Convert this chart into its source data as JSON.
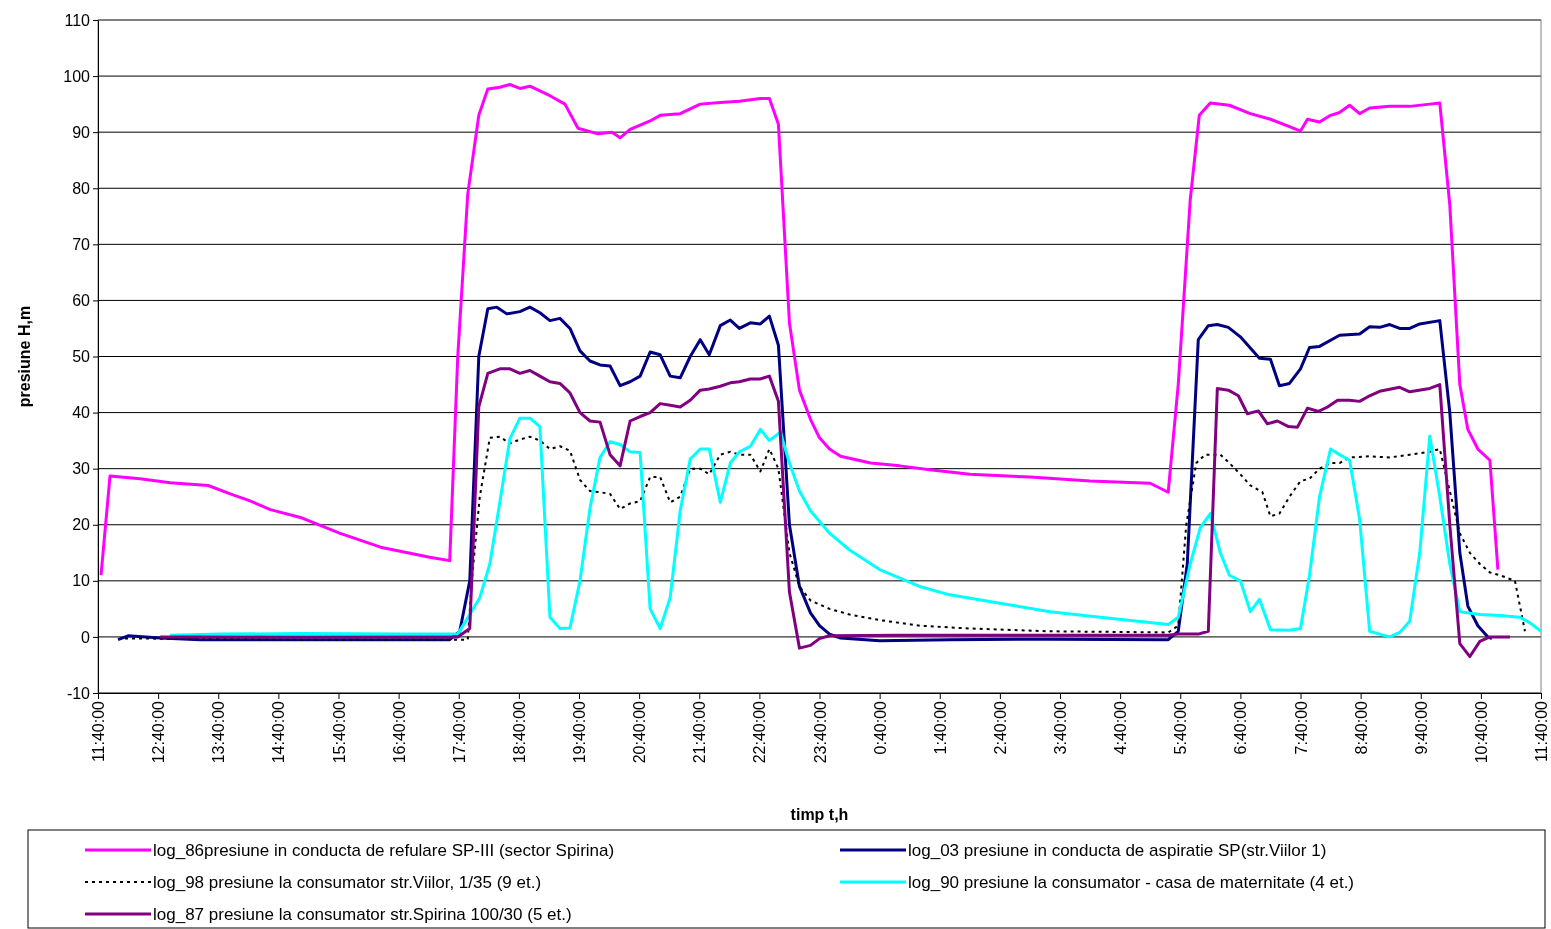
{
  "chart_data": {
    "type": "line",
    "xlabel": "timp t,h",
    "ylabel": "presiune H,m",
    "xlim": [
      "2000-01-01T11:40",
      "2000-01-02T11:40"
    ],
    "ylim": [
      -10,
      110
    ],
    "xticks": [
      {
        "value": "2000-01-01T11:40",
        "label": "11:40:00"
      },
      {
        "value": "2000-01-01T12:40",
        "label": "12:40:00"
      },
      {
        "value": "2000-01-01T13:40",
        "label": "13:40:00"
      },
      {
        "value": "2000-01-01T14:40",
        "label": "14:40:00"
      },
      {
        "value": "2000-01-01T15:40",
        "label": "15:40:00"
      },
      {
        "value": "2000-01-01T16:40",
        "label": "16:40:00"
      },
      {
        "value": "2000-01-01T17:40",
        "label": "17:40:00"
      },
      {
        "value": "2000-01-01T18:40",
        "label": "18:40:00"
      },
      {
        "value": "2000-01-01T19:40",
        "label": "19:40:00"
      },
      {
        "value": "2000-01-01T20:40",
        "label": "20:40:00"
      },
      {
        "value": "2000-01-01T21:40",
        "label": "21:40:00"
      },
      {
        "value": "2000-01-01T22:40",
        "label": "22:40:00"
      },
      {
        "value": "2000-01-01T23:40",
        "label": "23:40:00"
      },
      {
        "value": "2000-01-02T00:40",
        "label": "0:40:00"
      },
      {
        "value": "2000-01-02T01:40",
        "label": "1:40:00"
      },
      {
        "value": "2000-01-02T02:40",
        "label": "2:40:00"
      },
      {
        "value": "2000-01-02T03:40",
        "label": "3:40:00"
      },
      {
        "value": "2000-01-02T04:40",
        "label": "4:40:00"
      },
      {
        "value": "2000-01-02T05:40",
        "label": "5:40:00"
      },
      {
        "value": "2000-01-02T06:40",
        "label": "6:40:00"
      },
      {
        "value": "2000-01-02T07:40",
        "label": "7:40:00"
      },
      {
        "value": "2000-01-02T08:40",
        "label": "8:40:00"
      },
      {
        "value": "2000-01-02T09:40",
        "label": "9:40:00"
      },
      {
        "value": "2000-01-02T10:40",
        "label": "10:40:00"
      },
      {
        "value": "2000-01-02T11:40",
        "label": "11:40:00"
      }
    ],
    "yticks": [
      -10,
      0,
      10,
      20,
      30,
      40,
      50,
      60,
      70,
      80,
      90,
      100,
      110
    ],
    "grid": "y",
    "legend": "bottom",
    "series": [
      {
        "name": "log_86presiune in conducta de refulare SP-III (sector Spirina)",
        "color": "#ff00ff",
        "line_style": "solid",
        "x": [
          "2000-01-01T11:43",
          "2000-01-01T11:52",
          "2000-01-01T12:22",
          "2000-01-01T12:52",
          "2000-01-01T13:30",
          "2000-01-01T13:52",
          "2000-01-01T14:11",
          "2000-01-01T14:32",
          "2000-01-01T15:02",
          "2000-01-01T15:41",
          "2000-01-01T16:22",
          "2000-01-01T17:11",
          "2000-01-01T17:31",
          "2000-01-01T17:39",
          "2000-01-01T17:49",
          "2000-01-01T18:00",
          "2000-01-01T18:09",
          "2000-01-01T18:21",
          "2000-01-01T18:31",
          "2000-01-01T18:41",
          "2000-01-01T18:51",
          "2000-01-01T19:11",
          "2000-01-01T19:26",
          "2000-01-01T19:39",
          "2000-01-01T19:59",
          "2000-01-01T20:13",
          "2000-01-01T20:21",
          "2000-01-01T20:31",
          "2000-01-01T20:51",
          "2000-01-01T21:01",
          "2000-01-01T21:21",
          "2000-01-01T21:41",
          "2000-01-01T22:01",
          "2000-01-01T22:20",
          "2000-01-01T22:41",
          "2000-01-01T22:50",
          "2000-01-01T22:59",
          "2000-01-01T23:10",
          "2000-01-01T23:20",
          "2000-01-01T23:31",
          "2000-01-01T23:40",
          "2000-01-01T23:50",
          "2000-01-02T00:01",
          "2000-01-02T00:31",
          "2000-01-02T01:00",
          "2000-01-02T01:30",
          "2000-01-02T02:10",
          "2000-01-02T03:10",
          "2000-01-02T04:10",
          "2000-01-02T05:10",
          "2000-01-02T05:28",
          "2000-01-02T05:38",
          "2000-01-02T05:50",
          "2000-01-02T05:59",
          "2000-01-02T06:10",
          "2000-01-02T06:29",
          "2000-01-02T06:50",
          "2000-01-02T07:10",
          "2000-01-02T07:29",
          "2000-01-02T07:40",
          "2000-01-02T07:47",
          "2000-01-02T07:59",
          "2000-01-02T08:10",
          "2000-01-02T08:19",
          "2000-01-02T08:29",
          "2000-01-02T08:39",
          "2000-01-02T08:49",
          "2000-01-02T09:09",
          "2000-01-02T09:29",
          "2000-01-02T09:49",
          "2000-01-02T09:59",
          "2000-01-02T10:09",
          "2000-01-02T10:19",
          "2000-01-02T10:27",
          "2000-01-02T10:37",
          "2000-01-02T10:49",
          "2000-01-02T10:57"
        ],
        "values": [
          11,
          28.7,
          28.2,
          27.5,
          27,
          25.5,
          24.3,
          22.7,
          21.3,
          18.5,
          16,
          14.2,
          13.6,
          50,
          79,
          93,
          97.7,
          98,
          98.5,
          97.8,
          98.2,
          96.5,
          95,
          90.7,
          89.7,
          90,
          89,
          90.5,
          92,
          93,
          93.3,
          95,
          95.3,
          95.5,
          96,
          96,
          91.4,
          56,
          44,
          38.8,
          35.5,
          33.5,
          32.2,
          31,
          30.5,
          29.8,
          29,
          28.5,
          27.8,
          27.4,
          25.8,
          45,
          78,
          93,
          95.2,
          94.8,
          93.3,
          92.3,
          91,
          90.2,
          92.3,
          91.8,
          93,
          93.5,
          94.8,
          93.3,
          94.3,
          94.6,
          94.6,
          95,
          95.2,
          77,
          45,
          37,
          33.5,
          31.5,
          12
        ]
      },
      {
        "name": "log_03 presiune in conducta de aspiratie SP(str.Viilor 1)",
        "color": "#000080",
        "line_style": "solid",
        "x": [
          "2000-01-01T12:00",
          "2000-01-01T12:10",
          "2000-01-01T12:42",
          "2000-01-01T13:22",
          "2000-01-01T15:02",
          "2000-01-01T16:41",
          "2000-01-01T17:31",
          "2000-01-01T17:41",
          "2000-01-01T17:51",
          "2000-01-01T18:00",
          "2000-01-01T18:09",
          "2000-01-01T18:18",
          "2000-01-01T18:28",
          "2000-01-01T18:41",
          "2000-01-01T18:51",
          "2000-01-01T19:01",
          "2000-01-01T19:11",
          "2000-01-01T19:21",
          "2000-01-01T19:31",
          "2000-01-01T19:41",
          "2000-01-01T19:51",
          "2000-01-01T20:01",
          "2000-01-01T20:11",
          "2000-01-01T20:21",
          "2000-01-01T20:31",
          "2000-01-01T20:41",
          "2000-01-01T20:51",
          "2000-01-01T21:01",
          "2000-01-01T21:11",
          "2000-01-01T21:21",
          "2000-01-01T21:31",
          "2000-01-01T21:41",
          "2000-01-01T21:50",
          "2000-01-01T22:01",
          "2000-01-01T22:11",
          "2000-01-01T22:20",
          "2000-01-01T22:31",
          "2000-01-01T22:41",
          "2000-01-01T22:50",
          "2000-01-01T22:59",
          "2000-01-01T23:10",
          "2000-01-01T23:20",
          "2000-01-01T23:31",
          "2000-01-01T23:40",
          "2000-01-01T23:50",
          "2000-01-02T00:01",
          "2000-01-02T00:40",
          "2000-01-02T01:50",
          "2000-01-02T03:30",
          "2000-01-02T05:28",
          "2000-01-02T05:38",
          "2000-01-02T05:47",
          "2000-01-02T05:58",
          "2000-01-02T06:08",
          "2000-01-02T06:17",
          "2000-01-02T06:28",
          "2000-01-02T06:40",
          "2000-01-02T06:59",
          "2000-01-02T07:10",
          "2000-01-02T07:19",
          "2000-01-02T07:29",
          "2000-01-02T07:40",
          "2000-01-02T07:49",
          "2000-01-02T07:59",
          "2000-01-02T08:19",
          "2000-01-02T08:39",
          "2000-01-02T08:49",
          "2000-01-02T08:59",
          "2000-01-02T09:09",
          "2000-01-02T09:19",
          "2000-01-02T09:29",
          "2000-01-02T09:39",
          "2000-01-02T09:59",
          "2000-01-02T10:09",
          "2000-01-02T10:19",
          "2000-01-02T10:27",
          "2000-01-02T10:37",
          "2000-01-02T10:47",
          "2000-01-02T10:51"
        ],
        "values": [
          -0.5,
          0.2,
          -0.2,
          -0.5,
          -0.5,
          -0.5,
          -0.5,
          1,
          10,
          50,
          58.5,
          58.8,
          57.6,
          58,
          58.8,
          57.8,
          56.4,
          56.8,
          55,
          51,
          49.2,
          48.5,
          48.3,
          44.8,
          45.5,
          46.5,
          50.8,
          50.3,
          46.5,
          46.2,
          50,
          53,
          50.3,
          55.5,
          56.5,
          55,
          56,
          55.8,
          57.2,
          52,
          20,
          9,
          4.3,
          2,
          0.5,
          -0.2,
          -0.7,
          -0.5,
          -0.4,
          -0.5,
          1,
          13,
          53,
          55.5,
          55.7,
          55.2,
          53.5,
          49.7,
          49.5,
          44.8,
          45.2,
          47.8,
          51.6,
          51.8,
          53.8,
          54,
          55.3,
          55.2,
          55.7,
          55,
          55,
          55.8,
          56.4,
          40,
          15,
          5.5,
          2,
          0,
          -0.3
        ]
      },
      {
        "name": "log_98 presiune la consumator str.Viilor, 1/35 (9 et.)",
        "color": "#000000",
        "line_style": "dotted",
        "x": [
          "2000-01-01T12:07",
          "2000-01-01T12:32",
          "2000-01-01T15:02",
          "2000-01-01T17:49",
          "2000-01-01T17:53",
          "2000-01-01T18:01",
          "2000-01-01T18:11",
          "2000-01-01T18:21",
          "2000-01-01T18:31",
          "2000-01-01T18:41",
          "2000-01-01T18:51",
          "2000-01-01T19:01",
          "2000-01-01T19:11",
          "2000-01-01T19:21",
          "2000-01-01T19:31",
          "2000-01-01T19:41",
          "2000-01-01T19:51",
          "2000-01-01T20:01",
          "2000-01-01T20:11",
          "2000-01-01T20:21",
          "2000-01-01T20:31",
          "2000-01-01T20:41",
          "2000-01-01T20:51",
          "2000-01-01T21:01",
          "2000-01-01T21:11",
          "2000-01-01T21:21",
          "2000-01-01T21:31",
          "2000-01-01T21:41",
          "2000-01-01T21:50",
          "2000-01-01T22:01",
          "2000-01-01T22:11",
          "2000-01-01T22:20",
          "2000-01-01T22:31",
          "2000-01-01T22:41",
          "2000-01-01T22:50",
          "2000-01-01T22:59",
          "2000-01-01T23:10",
          "2000-01-01T23:20",
          "2000-01-01T23:31",
          "2000-01-01T23:50",
          "2000-01-02T00:10",
          "2000-01-02T00:40",
          "2000-01-02T01:20",
          "2000-01-02T02:10",
          "2000-01-02T03:30",
          "2000-01-02T05:28",
          "2000-01-02T05:38",
          "2000-01-02T05:46",
          "2000-01-02T05:56",
          "2000-01-02T06:05",
          "2000-01-02T06:20",
          "2000-01-02T06:29",
          "2000-01-02T06:40",
          "2000-01-02T06:50",
          "2000-01-02T07:02",
          "2000-01-02T07:10",
          "2000-01-02T07:19",
          "2000-01-02T07:29",
          "2000-01-02T07:40",
          "2000-01-02T07:49",
          "2000-01-02T07:59",
          "2000-01-02T08:10",
          "2000-01-02T08:19",
          "2000-01-02T08:29",
          "2000-01-02T08:49",
          "2000-01-02T09:09",
          "2000-01-02T09:29",
          "2000-01-02T09:49",
          "2000-01-02T09:59",
          "2000-01-02T10:09",
          "2000-01-02T10:19",
          "2000-01-02T10:29",
          "2000-01-02T10:39",
          "2000-01-02T10:49",
          "2000-01-02T10:59",
          "2000-01-02T11:14",
          "2000-01-02T11:24"
        ],
        "values": [
          -0.3,
          -0.3,
          -0.5,
          -0.5,
          10,
          25,
          35.5,
          35.7,
          34.5,
          35.2,
          35.7,
          35,
          33.5,
          34,
          33.2,
          28,
          26,
          25.8,
          25.5,
          22.8,
          23.8,
          24.2,
          28.5,
          28.5,
          24,
          25,
          30,
          30,
          29,
          32.5,
          33,
          32.5,
          32.5,
          29.5,
          33.5,
          30,
          15,
          9,
          6.5,
          5,
          4,
          3,
          2,
          1.5,
          1,
          0.8,
          2,
          20,
          31,
          32.5,
          32.5,
          31,
          29,
          27,
          25.8,
          21.5,
          22,
          25,
          27.8,
          28.2,
          30,
          31,
          31,
          32,
          32.2,
          32,
          32.5,
          33,
          33.5,
          26,
          18.5,
          15,
          13,
          11.5,
          11,
          10,
          1
        ]
      },
      {
        "name": "log_90 presiune la consumator - casa de maternitate (4 et.)",
        "color": "#00ffff",
        "line_style": "solid",
        "x": [
          "2000-01-01T12:52",
          "2000-01-01T13:42",
          "2000-01-01T15:02",
          "2000-01-01T16:41",
          "2000-01-01T17:39",
          "2000-01-01T17:51",
          "2000-01-01T18:01",
          "2000-01-01T18:11",
          "2000-01-01T18:21",
          "2000-01-01T18:31",
          "2000-01-01T18:41",
          "2000-01-01T18:51",
          "2000-01-01T19:01",
          "2000-01-01T19:11",
          "2000-01-01T19:21",
          "2000-01-01T19:31",
          "2000-01-01T19:41",
          "2000-01-01T19:51",
          "2000-01-01T20:01",
          "2000-01-01T20:11",
          "2000-01-01T20:21",
          "2000-01-01T20:31",
          "2000-01-01T20:41",
          "2000-01-01T20:51",
          "2000-01-01T21:01",
          "2000-01-01T21:11",
          "2000-01-01T21:21",
          "2000-01-01T21:31",
          "2000-01-01T21:41",
          "2000-01-01T21:50",
          "2000-01-01T22:01",
          "2000-01-01T22:11",
          "2000-01-01T22:20",
          "2000-01-01T22:31",
          "2000-01-01T22:41",
          "2000-01-01T22:50",
          "2000-01-01T23:01",
          "2000-01-01T23:10",
          "2000-01-01T23:20",
          "2000-01-01T23:31",
          "2000-01-01T23:50",
          "2000-01-02T00:10",
          "2000-01-02T00:40",
          "2000-01-02T01:20",
          "2000-01-02T01:50",
          "2000-01-02T02:40",
          "2000-01-02T03:30",
          "2000-01-02T04:20",
          "2000-01-02T05:28",
          "2000-01-02T05:38",
          "2000-01-02T05:50",
          "2000-01-02T06:00",
          "2000-01-02T06:10",
          "2000-01-02T06:20",
          "2000-01-02T06:29",
          "2000-01-02T06:40",
          "2000-01-02T06:50",
          "2000-01-02T06:59",
          "2000-01-02T07:10",
          "2000-01-02T07:29",
          "2000-01-02T07:40",
          "2000-01-02T07:49",
          "2000-01-02T07:59",
          "2000-01-02T08:10",
          "2000-01-02T08:19",
          "2000-01-02T08:29",
          "2000-01-02T08:39",
          "2000-01-02T08:49",
          "2000-01-02T08:59",
          "2000-01-02T09:09",
          "2000-01-02T09:19",
          "2000-01-02T09:29",
          "2000-01-02T09:39",
          "2000-01-02T09:49",
          "2000-01-02T09:59",
          "2000-01-02T10:09",
          "2000-01-02T10:19",
          "2000-01-02T10:39",
          "2000-01-02T10:59",
          "2000-01-02T11:19",
          "2000-01-02T11:29",
          "2000-01-02T11:40"
        ],
        "values": [
          0.3,
          0.5,
          0.6,
          0.5,
          0.5,
          4,
          7,
          13,
          24,
          35.3,
          39,
          39,
          37.5,
          3.5,
          1.5,
          1.6,
          10,
          23,
          32,
          34.8,
          34.3,
          33,
          32.9,
          5,
          1.5,
          7,
          22.5,
          31.7,
          33.5,
          33.5,
          24,
          31,
          33,
          34,
          37,
          35,
          36.5,
          31,
          26,
          22.5,
          18.5,
          15.5,
          12,
          9,
          7.5,
          6,
          4.5,
          3.5,
          2.2,
          3.5,
          13,
          19.5,
          22,
          15,
          11,
          10,
          4.5,
          6.7,
          1.3,
          1.2,
          1.5,
          11,
          25,
          33.5,
          32.5,
          31.5,
          21,
          1,
          0.5,
          0,
          0.8,
          2.8,
          15,
          35.8,
          25,
          13,
          4.5,
          4,
          3.8,
          3.5,
          2.5,
          1
        ]
      },
      {
        "name": "log_87 presiune la consumator str.Spirina 100/30 (5 et.)",
        "color": "#800080",
        "line_style": "solid",
        "x": [
          "2000-01-01T12:42",
          "2000-01-01T15:02",
          "2000-01-01T17:39",
          "2000-01-01T17:51",
          "2000-01-01T18:00",
          "2000-01-01T18:09",
          "2000-01-01T18:21",
          "2000-01-01T18:31",
          "2000-01-01T18:41",
          "2000-01-01T18:51",
          "2000-01-01T19:01",
          "2000-01-01T19:11",
          "2000-01-01T19:21",
          "2000-01-01T19:31",
          "2000-01-01T19:41",
          "2000-01-01T19:51",
          "2000-01-01T20:01",
          "2000-01-01T20:11",
          "2000-01-01T20:21",
          "2000-01-01T20:31",
          "2000-01-01T20:41",
          "2000-01-01T20:51",
          "2000-01-01T21:01",
          "2000-01-01T21:11",
          "2000-01-01T21:21",
          "2000-01-01T21:31",
          "2000-01-01T21:41",
          "2000-01-01T21:50",
          "2000-01-01T22:01",
          "2000-01-01T22:11",
          "2000-01-01T22:20",
          "2000-01-01T22:31",
          "2000-01-01T22:41",
          "2000-01-01T22:50",
          "2000-01-01T22:59",
          "2000-01-01T23:10",
          "2000-01-01T23:20",
          "2000-01-01T23:31",
          "2000-01-01T23:40",
          "2000-01-01T23:50",
          "2000-01-02T01:00",
          "2000-01-02T05:28",
          "2000-01-02T05:38",
          "2000-01-02T05:58",
          "2000-01-02T06:08",
          "2000-01-02T06:17",
          "2000-01-02T06:28",
          "2000-01-02T06:38",
          "2000-01-02T06:47",
          "2000-01-02T06:58",
          "2000-01-02T07:07",
          "2000-01-02T07:17",
          "2000-01-02T07:28",
          "2000-01-02T07:37",
          "2000-01-02T07:47",
          "2000-01-02T07:58",
          "2000-01-02T08:07",
          "2000-01-02T08:17",
          "2000-01-02T08:29",
          "2000-01-02T08:39",
          "2000-01-02T08:49",
          "2000-01-02T08:59",
          "2000-01-02T09:19",
          "2000-01-02T09:29",
          "2000-01-02T09:49",
          "2000-01-02T09:59",
          "2000-01-02T10:09",
          "2000-01-02T10:19",
          "2000-01-02T10:29",
          "2000-01-02T10:39",
          "2000-01-02T10:49",
          "2000-01-02T11:09"
        ],
        "values": [
          0,
          0,
          0,
          1.5,
          41,
          47,
          47.8,
          47.8,
          47,
          47.5,
          46.5,
          45.5,
          45.2,
          43.5,
          40,
          38.5,
          38.3,
          32.5,
          30.5,
          38.5,
          39.3,
          40,
          41.6,
          41.3,
          41,
          42.2,
          44,
          44.2,
          44.7,
          45.3,
          45.5,
          46,
          46,
          46.5,
          42,
          8,
          -2,
          -1.5,
          -0.3,
          0.2,
          0.3,
          0.3,
          0.5,
          0.5,
          1,
          44.3,
          44,
          43,
          39.8,
          40.3,
          38,
          38.5,
          37.5,
          37.4,
          40.8,
          40.2,
          41,
          42.2,
          42.2,
          42,
          43,
          43.8,
          44.5,
          43.7,
          44.3,
          45,
          20,
          -1.2,
          -3.5,
          -0.8,
          0,
          0
        ]
      }
    ]
  }
}
